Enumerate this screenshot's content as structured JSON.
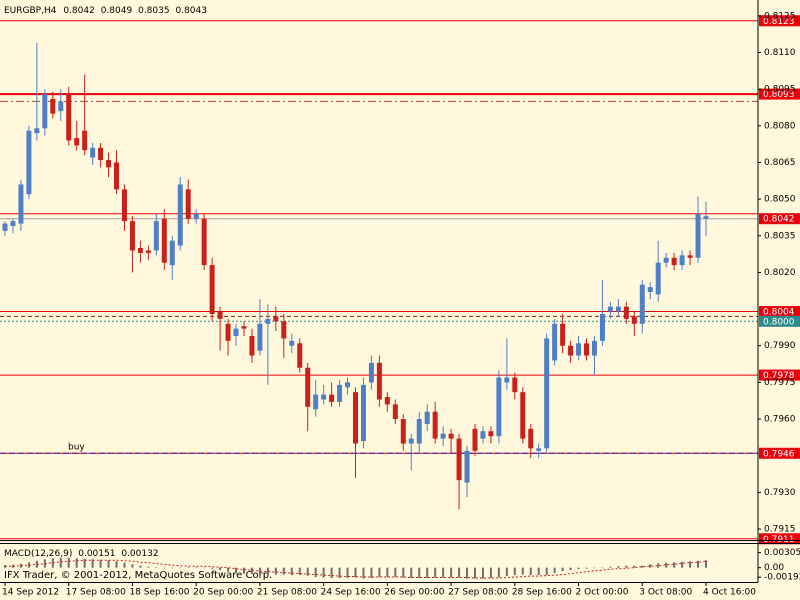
{
  "chart_data": {
    "type": "candlestick",
    "symbol": "EURGBP,H4",
    "up_color": "#4f7fc4",
    "down_color": "#c9201c",
    "background": "#fff8dc",
    "categories": [
      "14 Sep 2012",
      null,
      null,
      null,
      null,
      null,
      null,
      null,
      "17 Sep 08:00",
      null,
      null,
      null,
      null,
      null,
      null,
      null,
      "18 Sep 16:00",
      null,
      null,
      null,
      null,
      null,
      null,
      null,
      "20 Sep 00:00",
      null,
      null,
      null,
      null,
      null,
      null,
      null,
      "21 Sep 08:00",
      null,
      null,
      null,
      null,
      null,
      null,
      null,
      "24 Sep 16:00",
      null,
      null,
      null,
      null,
      null,
      null,
      null,
      "26 Sep 00:00",
      null,
      null,
      null,
      null,
      null,
      null,
      null,
      "27 Sep 08:00",
      null,
      null,
      null,
      null,
      null,
      null,
      null,
      "28 Sep 16:00",
      null,
      null,
      null,
      null,
      null,
      null,
      null,
      "2 Oct 00:00",
      null,
      null,
      null,
      null,
      null,
      null,
      null,
      "3 Oct 08:00",
      null,
      null,
      null,
      null,
      null,
      null,
      null,
      "4 Oct 16:00"
    ],
    "open": [
      0.8037,
      0.8039,
      0.804,
      0.8052,
      0.8077,
      0.8079,
      0.8091,
      0.8086,
      0.8093,
      0.8075,
      0.8078,
      0.8067,
      0.8071,
      0.8066,
      0.8065,
      0.8054,
      0.8041,
      0.803,
      0.8029,
      0.8029,
      0.8042,
      0.8023,
      0.8031,
      0.8054,
      0.8042,
      0.8042,
      0.8023,
      0.8004,
      0.7999,
      0.7994,
      0.7998,
      0.7994,
      0.7988,
      0.7999,
      0.8002,
      0.8,
      0.799,
      0.7991,
      0.7981,
      0.7964,
      0.7968,
      0.797,
      0.7967,
      0.7973,
      0.7971,
      0.7951,
      0.7975,
      0.7983,
      0.7969,
      0.7966,
      0.796,
      0.795,
      0.795,
      0.7958,
      0.7963,
      0.7952,
      0.7954,
      0.7952,
      0.7934,
      0.7956,
      0.7952,
      0.7955,
      0.7953,
      0.7975,
      0.7977,
      0.7971,
      0.7956,
      0.7947,
      0.7948,
      0.7984,
      0.7999,
      0.799,
      0.7986,
      0.7991,
      0.7986,
      0.7992,
      0.8004,
      0.8004,
      0.8006,
      0.8002,
      0.7999,
      0.8012,
      0.8011,
      0.8024,
      0.8026,
      0.8023,
      0.8027,
      0.8026,
      0.8042
    ],
    "high": [
      0.8041,
      0.8042,
      0.8058,
      0.808,
      0.8114,
      0.8095,
      0.8094,
      0.8095,
      0.8096,
      0.8082,
      0.8101,
      0.8073,
      0.8073,
      0.8069,
      0.807,
      0.8056,
      0.8043,
      0.8033,
      0.8031,
      0.8044,
      0.8046,
      0.8035,
      0.8059,
      0.8058,
      0.8046,
      0.8044,
      0.8026,
      0.8006,
      0.8001,
      0.7999,
      0.8,
      0.7997,
      0.8009,
      0.8007,
      0.8006,
      0.8003,
      0.7995,
      0.7993,
      0.7983,
      0.7976,
      0.7974,
      0.7975,
      0.7976,
      0.7977,
      0.7973,
      0.7977,
      0.7986,
      0.7986,
      0.7971,
      0.7968,
      0.7962,
      0.7954,
      0.7963,
      0.7966,
      0.7967,
      0.7957,
      0.7956,
      0.7954,
      0.7949,
      0.7958,
      0.7957,
      0.7957,
      0.798,
      0.7993,
      0.7979,
      0.7973,
      0.7958,
      0.795,
      0.7995,
      0.8001,
      0.8003,
      0.7992,
      0.7994,
      0.7993,
      0.7994,
      0.8017,
      0.8008,
      0.8009,
      0.8008,
      0.8004,
      0.8017,
      0.8016,
      0.8033,
      0.8028,
      0.8028,
      0.8029,
      0.8029,
      0.8051,
      0.8049
    ],
    "low": [
      0.8035,
      0.8036,
      0.8037,
      0.805,
      0.8074,
      0.8076,
      0.8083,
      0.8082,
      0.8072,
      0.807,
      0.8068,
      0.8064,
      0.8063,
      0.8059,
      0.8052,
      0.8037,
      0.802,
      0.8024,
      0.8025,
      0.8027,
      0.8021,
      0.8017,
      0.8029,
      0.804,
      0.804,
      0.8021,
      0.8,
      0.7988,
      0.7986,
      0.799,
      0.7994,
      0.7983,
      0.7986,
      0.7974,
      0.7996,
      0.7985,
      0.7987,
      0.7979,
      0.7955,
      0.7961,
      0.7966,
      0.7965,
      0.7965,
      0.797,
      0.7936,
      0.7948,
      0.7972,
      0.7965,
      0.7963,
      0.7958,
      0.7947,
      0.7939,
      0.7946,
      0.7955,
      0.795,
      0.7949,
      0.7946,
      0.7923,
      0.7928,
      0.7945,
      0.795,
      0.795,
      0.795,
      0.7972,
      0.7968,
      0.795,
      0.7944,
      0.7944,
      0.7946,
      0.7982,
      0.7987,
      0.7983,
      0.7984,
      0.7984,
      0.7978,
      0.799,
      0.8001,
      0.8002,
      0.7999,
      0.7994,
      0.7995,
      0.8009,
      0.8008,
      0.8022,
      0.8021,
      0.8021,
      0.8023,
      0.8024,
      0.8035
    ],
    "close": [
      0.804,
      0.8041,
      0.8056,
      0.8078,
      0.8079,
      0.8093,
      0.8085,
      0.809,
      0.8074,
      0.8072,
      0.807,
      0.8071,
      0.8066,
      0.8063,
      0.8054,
      0.8041,
      0.8029,
      0.8028,
      0.8028,
      0.8041,
      0.8024,
      0.8033,
      0.8056,
      0.8042,
      0.8044,
      0.8023,
      0.8003,
      0.8001,
      0.7992,
      0.7997,
      0.7997,
      0.7986,
      0.7999,
      0.8001,
      0.8,
      0.7993,
      0.7992,
      0.7981,
      0.7965,
      0.797,
      0.797,
      0.7967,
      0.7974,
      0.7975,
      0.795,
      0.7974,
      0.7983,
      0.7968,
      0.7966,
      0.796,
      0.795,
      0.7952,
      0.796,
      0.7963,
      0.7952,
      0.7954,
      0.7952,
      0.7935,
      0.7947,
      0.7947,
      0.7955,
      0.7953,
      0.7977,
      0.7977,
      0.7971,
      0.7952,
      0.7948,
      0.7948,
      0.7993,
      0.7999,
      0.799,
      0.7986,
      0.7991,
      0.7986,
      0.7992,
      0.8003,
      0.8006,
      0.8006,
      0.8001,
      0.7999,
      0.8015,
      0.8014,
      0.8024,
      0.8026,
      0.8023,
      0.8027,
      0.8026,
      0.8044,
      0.8043
    ],
    "ylim": [
      0.79105,
      0.81315
    ],
    "yticks": [
      0.8125,
      {
        "value": 0.811,
        "label": "0.8110"
      },
      0.8095,
      {
        "value": 0.808,
        "label": "0.8080"
      },
      0.8065,
      {
        "value": 0.805,
        "label": "0.8050"
      },
      0.8035,
      {
        "value": 0.802,
        "label": "0.8020"
      },
      {
        "value": 0.799,
        "label": "0.7990"
      },
      0.7975,
      {
        "value": 0.796,
        "label": "0.7960"
      },
      {
        "value": 0.793,
        "label": "0.7930"
      },
      0.7915
    ],
    "levels": [
      {
        "value": 0.8123,
        "color": "#e8000b",
        "width": 1,
        "tag": "#e8000b"
      },
      {
        "value": 0.8093,
        "color": "#e8000b",
        "width": 2,
        "tag": "#e8000b"
      },
      {
        "value": 0.809,
        "color": "#a0522d",
        "width": 1,
        "dash": "8 3 2 3"
      },
      {
        "value": 0.8044,
        "color": "#e8000b",
        "width": 1
      },
      {
        "value": 0.8042,
        "color": "#a0a0a0",
        "width": 1,
        "tag": "#e8000b"
      },
      {
        "value": 0.8004,
        "color": "#e8000b",
        "width": 1,
        "tag": "#e8000b"
      },
      {
        "value": 0.8002,
        "color": "#8b1a1a",
        "width": 1,
        "dash": "4 3"
      },
      {
        "value": 0.8,
        "label": "0.8000",
        "color": "#2e8b8b",
        "width": 1,
        "dash": "2 2",
        "tag": "#2e8b8b"
      },
      {
        "value": 0.7978,
        "color": "#e8000b",
        "width": 1,
        "tag": "#e8000b"
      },
      {
        "value": 0.7946,
        "color": "#e8000b",
        "width": 1,
        "tag": "#e8000b"
      },
      {
        "value": 0.7946,
        "color": "#2020c0",
        "width": 1,
        "dash": "6 3"
      },
      {
        "value": 0.7911,
        "color": "#e8000b",
        "width": 1,
        "tag": "#e8000b"
      }
    ],
    "annotation": "buy",
    "indicator": {
      "name": "MACD(12,26,9)",
      "hist_color": "#6e6e6e",
      "signal_color": "#c9201c",
      "ylim": [
        -0.0027,
        0.0046
      ],
      "yticks": [
        0.00305,
        {
          "value": 0,
          "label": "0.00"
        },
        -0.00192
      ],
      "macd": [
        0.0005,
        0.0006,
        0.0008,
        0.0011,
        0.0014,
        0.0017,
        0.0019,
        0.002,
        0.002,
        0.0019,
        0.0018,
        0.0017,
        0.0016,
        0.0015,
        0.0013,
        0.001,
        0.0007,
        0.0004,
        0.0002,
        0.0001,
        0.0,
        -0.0001,
        -0.0001,
        0.0001,
        0.0001,
        0.0,
        -0.0002,
        -0.0005,
        -0.0008,
        -0.001,
        -0.0012,
        -0.0013,
        -0.0014,
        -0.0014,
        -0.0014,
        -0.0014,
        -0.0015,
        -0.0015,
        -0.0016,
        -0.0019,
        -0.002,
        -0.0021,
        -0.0021,
        -0.0021,
        -0.002,
        -0.0022,
        -0.0021,
        -0.0019,
        -0.0019,
        -0.0019,
        -0.002,
        -0.0021,
        -0.0021,
        -0.0021,
        -0.002,
        -0.002,
        -0.002,
        -0.002,
        -0.0022,
        -0.0022,
        -0.0022,
        -0.0021,
        -0.002,
        -0.0017,
        -0.0015,
        -0.0014,
        -0.0015,
        -0.0015,
        -0.0015,
        -0.0011,
        -0.0007,
        -0.0005,
        -0.0003,
        -0.0002,
        -0.0001,
        0.0,
        0.0002,
        0.0003,
        0.0004,
        0.0004,
        0.0004,
        0.0007,
        0.0009,
        0.001,
        0.0011,
        0.0012,
        0.0013,
        0.0014,
        0.00151
      ],
      "signal": [
        0.0003,
        0.0003,
        0.0004,
        0.0005,
        0.0007,
        0.0008,
        0.001,
        0.0012,
        0.0013,
        0.0014,
        0.0015,
        0.0015,
        0.0015,
        0.0015,
        0.0015,
        0.0014,
        0.0013,
        0.0011,
        0.001,
        0.0008,
        0.0007,
        0.0005,
        0.0004,
        0.0003,
        0.0003,
        0.0003,
        0.0002,
        0.0001,
        0.0,
        -0.0002,
        -0.0004,
        -0.0005,
        -0.0007,
        -0.0008,
        -0.0009,
        -0.001,
        -0.0011,
        -0.0012,
        -0.0013,
        -0.0014,
        -0.0015,
        -0.0016,
        -0.0017,
        -0.0018,
        -0.0018,
        -0.0019,
        -0.0019,
        -0.0019,
        -0.0019,
        -0.0019,
        -0.0019,
        -0.002,
        -0.002,
        -0.002,
        -0.002,
        -0.002,
        -0.002,
        -0.002,
        -0.002,
        -0.0021,
        -0.0021,
        -0.0021,
        -0.0021,
        -0.002,
        -0.0019,
        -0.0018,
        -0.0017,
        -0.0017,
        -0.0016,
        -0.0015,
        -0.0014,
        -0.0012,
        -0.001,
        -0.0008,
        -0.0006,
        -0.0005,
        -0.0003,
        -0.0002,
        -0.0001,
        0.0,
        0.0002,
        0.0003,
        0.0004,
        0.0006,
        0.0007,
        0.0009,
        0.001,
        0.0011,
        0.00132
      ]
    },
    "footer": "IFX Trader, © 2001-2012, MetaQuotes Software Corp."
  }
}
